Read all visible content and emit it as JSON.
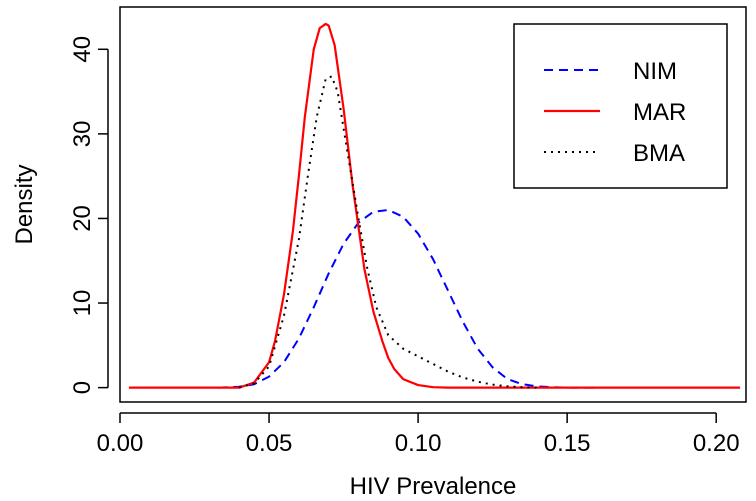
{
  "chart_data": {
    "type": "line",
    "title": "",
    "xlabel": "HIV Prevalence",
    "ylabel": "Density",
    "xlim": [
      0.0,
      0.21
    ],
    "ylim": [
      0,
      45
    ],
    "xticks": [
      0.0,
      0.05,
      0.1,
      0.15,
      0.2
    ],
    "xtick_labels": [
      "0.00",
      "0.05",
      "0.10",
      "0.15",
      "0.20"
    ],
    "yticks": [
      0,
      10,
      20,
      30,
      40
    ],
    "ytick_labels": [
      "0",
      "10",
      "20",
      "30",
      "40"
    ],
    "grid": false,
    "legend_position": "top-right",
    "series": [
      {
        "name": "NIM",
        "color": "#0000ff",
        "style": "dashed",
        "x": [
          0.033,
          0.04,
          0.045,
          0.05,
          0.055,
          0.06,
          0.065,
          0.07,
          0.075,
          0.08,
          0.085,
          0.09,
          0.095,
          0.1,
          0.105,
          0.11,
          0.115,
          0.12,
          0.125,
          0.13,
          0.135,
          0.14,
          0.145,
          0.15,
          0.155,
          0.16
        ],
        "y": [
          0.0,
          0.1,
          0.4,
          1.3,
          3.0,
          5.8,
          9.5,
          13.5,
          17.0,
          19.5,
          20.8,
          21.0,
          20.2,
          18.2,
          15.2,
          11.5,
          7.8,
          4.6,
          2.4,
          1.0,
          0.4,
          0.15,
          0.05,
          0.0,
          0.0,
          0.0
        ]
      },
      {
        "name": "MAR",
        "color": "#ff0000",
        "style": "solid",
        "x": [
          0.003,
          0.04,
          0.045,
          0.05,
          0.052,
          0.055,
          0.058,
          0.06,
          0.062,
          0.065,
          0.067,
          0.069,
          0.07,
          0.072,
          0.075,
          0.078,
          0.08,
          0.082,
          0.085,
          0.088,
          0.09,
          0.092,
          0.095,
          0.1,
          0.105,
          0.11,
          0.12,
          0.208
        ],
        "y": [
          0.0,
          0.0,
          0.6,
          3.0,
          5.5,
          11.0,
          18.5,
          25.0,
          32.0,
          40.0,
          42.5,
          43.0,
          42.8,
          40.5,
          33.0,
          24.0,
          19.0,
          14.0,
          9.0,
          5.5,
          3.5,
          2.2,
          1.0,
          0.3,
          0.05,
          0.0,
          0.0,
          0.0
        ]
      },
      {
        "name": "BMA",
        "color": "#000000",
        "style": "dotted",
        "x": [
          0.04,
          0.045,
          0.05,
          0.055,
          0.06,
          0.063,
          0.066,
          0.069,
          0.071,
          0.073,
          0.076,
          0.08,
          0.083,
          0.086,
          0.09,
          0.095,
          0.1,
          0.105,
          0.11,
          0.115,
          0.12,
          0.125,
          0.13,
          0.135,
          0.14
        ],
        "y": [
          0.0,
          0.5,
          2.5,
          8.5,
          17.5,
          25.0,
          32.0,
          36.5,
          36.8,
          35.0,
          28.5,
          20.0,
          14.0,
          9.5,
          6.2,
          4.6,
          3.7,
          2.8,
          1.9,
          1.2,
          0.7,
          0.35,
          0.15,
          0.05,
          0.0
        ]
      }
    ]
  }
}
